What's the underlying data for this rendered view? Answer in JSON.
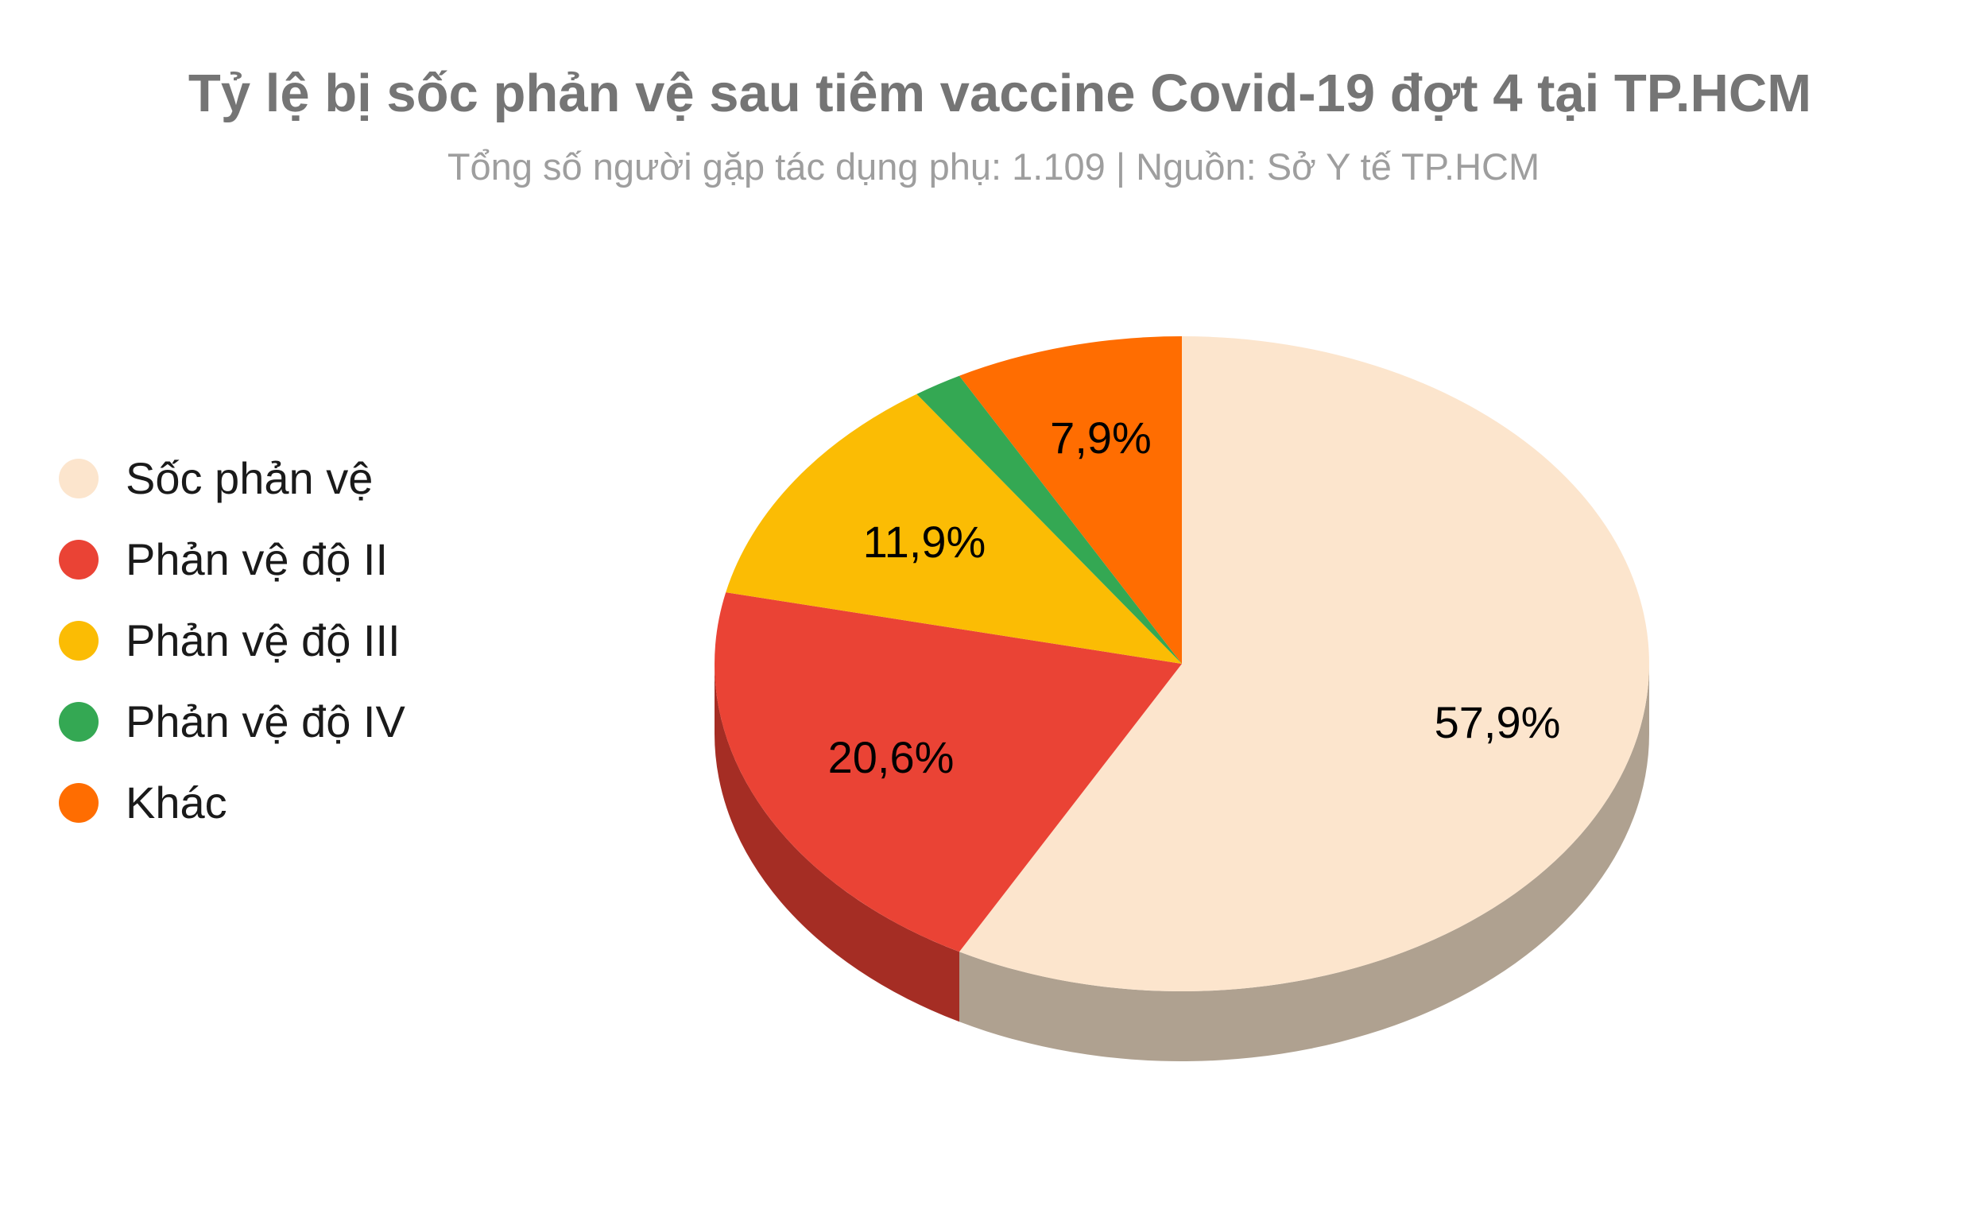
{
  "title": "Tỷ lệ bị sốc phản vệ sau tiêm vaccine Covid-19 đợt 4 tại TP.HCM",
  "subtitle": "Tổng số người gặp tác dụng phụ: 1.109 | Nguồn: Sở Y tế TP.HCM",
  "legend": {
    "items": [
      {
        "label": "Sốc phản vệ",
        "color": "#FCE5CD"
      },
      {
        "label": "Phản vệ độ II",
        "color": "#EA4335"
      },
      {
        "label": "Phản vệ độ III",
        "color": "#FBBC04"
      },
      {
        "label": "Phản vệ độ IV",
        "color": "#34A853"
      },
      {
        "label": "Khác",
        "color": "#FF6D01"
      }
    ]
  },
  "chart_data": {
    "type": "pie",
    "style": "3d",
    "title": "Tỷ lệ bị sốc phản vệ sau tiêm vaccine Covid-19 đợt 4 tại TP.HCM",
    "subtitle": "Tổng số người gặp tác dụng phụ: 1.109 | Nguồn: Sở Y tế TP.HCM",
    "categories": [
      "Sốc phản vệ",
      "Phản vệ độ II",
      "Phản vệ độ III",
      "Phản vệ độ IV",
      "Khác"
    ],
    "values": [
      57.9,
      20.6,
      11.9,
      1.7,
      7.9
    ],
    "data_labels": [
      "57,9%",
      "20,6%",
      "11,9%",
      "",
      "7,9%"
    ],
    "colors": [
      "#FCE5CD",
      "#EA4335",
      "#FBBC04",
      "#34A853",
      "#FF6D01"
    ],
    "side_colors": [
      "#AFA190",
      "#A52D24",
      "#A87E03",
      "#237038",
      "#AA4901"
    ],
    "start_angle_deg": 0,
    "direction": "clockwise",
    "legend_position": "left",
    "total_count": 1109
  }
}
